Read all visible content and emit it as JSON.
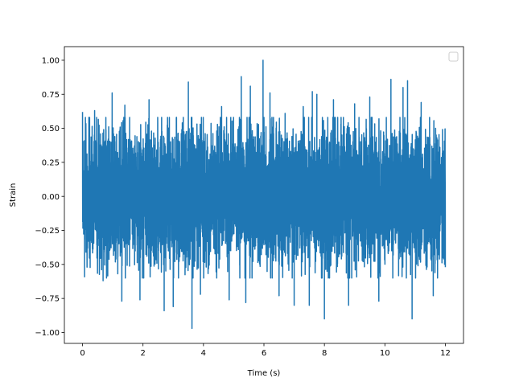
{
  "chart_data": {
    "type": "line",
    "title": "",
    "xlabel": "Time (s)",
    "ylabel": "Strain",
    "xlim": [
      -0.6,
      12.6
    ],
    "ylim": [
      -1.08,
      1.1
    ],
    "xticks": [
      0,
      2,
      4,
      6,
      8,
      10,
      12
    ],
    "xtick_labels": [
      "0",
      "2",
      "4",
      "6",
      "8",
      "10",
      "12"
    ],
    "yticks": [
      -1.0,
      -0.75,
      -0.5,
      -0.25,
      0.0,
      0.25,
      0.5,
      0.75,
      1.0
    ],
    "ytick_labels": [
      "−1.00",
      "−0.75",
      "−0.50",
      "−0.25",
      "0.00",
      "0.25",
      "0.50",
      "0.75",
      "1.00"
    ],
    "grid": false,
    "legend": {
      "placement": "top-right",
      "entries": []
    },
    "series": [
      {
        "color": "#1f77b4",
        "x_range": [
          0,
          12
        ],
        "y_range": [
          -0.97,
          1.0
        ],
        "notable_peaks": [
          {
            "x": 0.0,
            "y": 0.62
          },
          {
            "x": 0.15,
            "y": -0.52
          },
          {
            "x": 0.4,
            "y": 0.63
          },
          {
            "x": 0.68,
            "y": -0.62
          },
          {
            "x": 0.98,
            "y": 0.76
          },
          {
            "x": 1.3,
            "y": -0.77
          },
          {
            "x": 1.4,
            "y": 0.67
          },
          {
            "x": 1.9,
            "y": -0.76
          },
          {
            "x": 2.2,
            "y": 0.71
          },
          {
            "x": 2.7,
            "y": -0.84
          },
          {
            "x": 3.0,
            "y": -0.81
          },
          {
            "x": 3.3,
            "y": 0.54
          },
          {
            "x": 3.5,
            "y": 0.84
          },
          {
            "x": 3.62,
            "y": -0.97
          },
          {
            "x": 3.9,
            "y": -0.72
          },
          {
            "x": 4.6,
            "y": 0.66
          },
          {
            "x": 4.85,
            "y": -0.76
          },
          {
            "x": 5.25,
            "y": 0.88
          },
          {
            "x": 5.4,
            "y": -0.78
          },
          {
            "x": 5.55,
            "y": 0.81
          },
          {
            "x": 5.97,
            "y": 1.0
          },
          {
            "x": 6.2,
            "y": 0.76
          },
          {
            "x": 6.5,
            "y": -0.73
          },
          {
            "x": 6.7,
            "y": 0.61
          },
          {
            "x": 7.0,
            "y": -0.8
          },
          {
            "x": 7.3,
            "y": 0.66
          },
          {
            "x": 7.5,
            "y": -0.8
          },
          {
            "x": 7.6,
            "y": 0.77
          },
          {
            "x": 7.75,
            "y": 0.75
          },
          {
            "x": 8.0,
            "y": -0.9
          },
          {
            "x": 8.3,
            "y": 0.71
          },
          {
            "x": 8.8,
            "y": -0.8
          },
          {
            "x": 9.0,
            "y": 0.68
          },
          {
            "x": 9.5,
            "y": 0.73
          },
          {
            "x": 9.8,
            "y": -0.77
          },
          {
            "x": 10.2,
            "y": 0.86
          },
          {
            "x": 10.6,
            "y": 0.8
          },
          {
            "x": 10.75,
            "y": 0.85
          },
          {
            "x": 10.9,
            "y": -0.9
          },
          {
            "x": 11.2,
            "y": 0.69
          },
          {
            "x": 11.6,
            "y": -0.73
          },
          {
            "x": 12.0,
            "y": -0.52
          }
        ]
      }
    ]
  }
}
